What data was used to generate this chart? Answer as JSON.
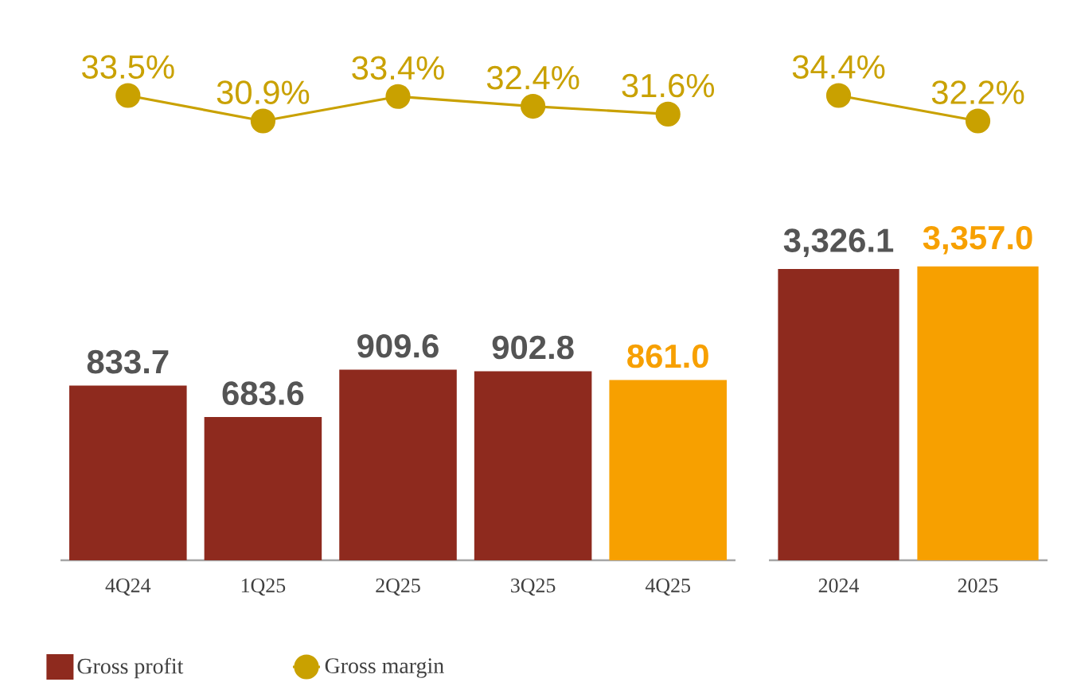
{
  "chart_data": [
    {
      "type": "line",
      "categories": [
        null,
        null,
        null,
        null,
        null
      ],
      "legend": "bottom",
      "marker": "circle",
      "series": [
        {
          "name": "Gross margin",
          "color": "#c9a100",
          "values": [
            33.5,
            30.9,
            33.4,
            32.4,
            31.6
          ],
          "value_labels": [
            "33.5%",
            "30.9%",
            "33.4%",
            "32.4%",
            "31.6%"
          ]
        }
      ]
    },
    {
      "type": "bar",
      "categories": [
        "4Q24",
        "1Q25",
        "2Q25",
        "3Q25",
        "4Q25"
      ],
      "legend": "bottom",
      "series": [
        {
          "name": "Gross profit",
          "type": "bar",
          "color": "#8e2a1e",
          "colors": [
            "#8e2a1e",
            "#8e2a1e",
            "#8e2a1e",
            "#8e2a1e",
            "#f7a000"
          ],
          "values": [
            833.7,
            683.6,
            909.6,
            902.8,
            861.0
          ],
          "value_labels": [
            "833.7",
            "683.6",
            "909.6",
            "902.8",
            "861.0"
          ]
        }
      ]
    },
    {
      "type": "line",
      "categories": [
        null,
        null
      ],
      "marker": "circle",
      "series": [
        {
          "color": "#c9a100",
          "values": [
            34.4,
            32.2
          ],
          "value_labels": [
            "34.4%",
            "32.2%"
          ]
        }
      ]
    },
    {
      "type": "bar",
      "categories": [
        "2024",
        "2025"
      ],
      "series": [
        {
          "type": "bar",
          "colors": [
            "#8e2a1e",
            "#f7a000"
          ],
          "values": [
            3326.1,
            3357.0
          ],
          "value_labels": [
            "3,326.1",
            "3,357.0"
          ]
        }
      ]
    }
  ]
}
